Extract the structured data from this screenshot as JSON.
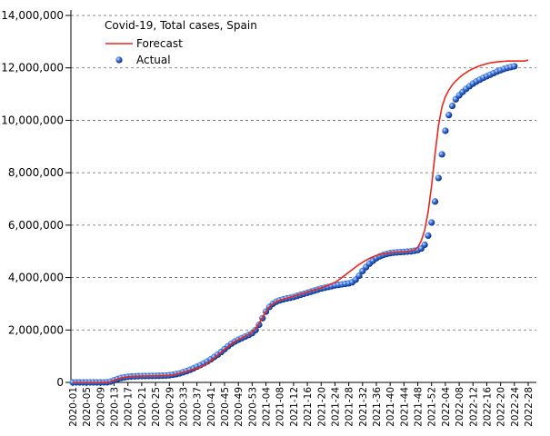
{
  "chart_data": {
    "type": "line",
    "title": "Covid-19, Total cases, Spain",
    "legend": "upper left",
    "grid": true,
    "categories": [
      "2020-01",
      null,
      null,
      null,
      "2020-05",
      null,
      null,
      null,
      "2020-09",
      null,
      null,
      null,
      "2020-13",
      null,
      null,
      null,
      "2020-17",
      null,
      null,
      null,
      "2020-21",
      null,
      null,
      null,
      "2020-25",
      null,
      null,
      null,
      "2020-29",
      null,
      null,
      null,
      "2020-33",
      null,
      null,
      null,
      "2020-37",
      null,
      null,
      null,
      "2020-41",
      null,
      null,
      null,
      "2020-45",
      null,
      null,
      null,
      "2020-49",
      null,
      null,
      null,
      "2020-53",
      null,
      null,
      null,
      "2021-04",
      null,
      null,
      null,
      "2021-08",
      null,
      null,
      null,
      "2021-12",
      null,
      null,
      null,
      "2021-16",
      null,
      null,
      null,
      "2021-20",
      null,
      null,
      null,
      "2021-24",
      null,
      null,
      null,
      "2021-28",
      null,
      null,
      null,
      "2021-32",
      null,
      null,
      null,
      "2021-36",
      null,
      null,
      null,
      "2021-40",
      null,
      null,
      null,
      "2021-44",
      null,
      null,
      null,
      "2021-48",
      null,
      null,
      null,
      "2021-52",
      null,
      null,
      null,
      "2022-04",
      null,
      null,
      null,
      "2022-08",
      null,
      null,
      null,
      "2022-12",
      null,
      null,
      null,
      "2022-16",
      null,
      null,
      null,
      "2022-20",
      null,
      null,
      null,
      "2022-24",
      null,
      null,
      null,
      "2022-28"
    ],
    "ylim": [
      0,
      14000000
    ],
    "yticks": [
      0,
      {
        "value": 2000000,
        "label": "2,000,000"
      },
      {
        "value": 4000000,
        "label": "4,000,000"
      },
      {
        "value": 6000000,
        "label": "6,000,000"
      },
      {
        "value": 8000000,
        "label": "8,000,000"
      },
      {
        "value": 10000000,
        "label": "10,000,000"
      },
      {
        "value": 12000000,
        "label": "12,000,000"
      },
      {
        "value": 14000000,
        "label": "14,000,000"
      }
    ],
    "series": [
      {
        "name": "Forecast",
        "color": "#e8281c",
        "style": "line",
        "values": [
          0,
          0,
          0,
          0,
          0,
          0,
          0,
          0,
          500,
          2000,
          5000,
          30000,
          85000,
          130000,
          170000,
          195000,
          215000,
          225000,
          232000,
          238000,
          240000,
          243000,
          245000,
          247000,
          249000,
          252000,
          256000,
          262000,
          272000,
          290000,
          315000,
          345000,
          385000,
          420000,
          460000,
          500000,
          540000,
          580000,
          640000,
          720000,
          820000,
          930000,
          1040000,
          1150000,
          1260000,
          1370000,
          1470000,
          1560000,
          1630000,
          1700000,
          1770000,
          1840000,
          1920000,
          2050000,
          2250000,
          2480000,
          2700000,
          2880000,
          3000000,
          3080000,
          3130000,
          3170000,
          3210000,
          3250000,
          3290000,
          3330000,
          3370000,
          3410000,
          3450000,
          3490000,
          3530000,
          3570000,
          3610000,
          3650000,
          3700000,
          3760000,
          3820000,
          3900000,
          4000000,
          4100000,
          4200000,
          4300000,
          4400000,
          4500000,
          4580000,
          4660000,
          4730000,
          4790000,
          4840000,
          4880000,
          4910000,
          4930000,
          4950000,
          4960000,
          4970000,
          4980000,
          4990000,
          5000000,
          5020000,
          5050000,
          5150000,
          5400000,
          5800000,
          6500000,
          7500000,
          8700000,
          9800000,
          10500000,
          10900000,
          11150000,
          11350000,
          11500000,
          11620000,
          11730000,
          11820000,
          11900000,
          11970000,
          12030000,
          12080000,
          12120000,
          12160000,
          12190000,
          12210000,
          12230000,
          12240000,
          12250000,
          12260000,
          12260000,
          12260000,
          12260000,
          12260000,
          12260000,
          12300000
        ]
      },
      {
        "name": "Actual",
        "color": "#1f5fd0",
        "style": "points",
        "values": [
          0,
          0,
          0,
          0,
          0,
          0,
          0,
          0,
          500,
          2000,
          5000,
          30000,
          85000,
          130000,
          170000,
          195000,
          215000,
          225000,
          232000,
          238000,
          240000,
          243000,
          245000,
          247000,
          249000,
          252000,
          256000,
          262000,
          272000,
          290000,
          315000,
          345000,
          385000,
          430000,
          480000,
          540000,
          600000,
          660000,
          730000,
          800000,
          880000,
          970000,
          1060000,
          1160000,
          1270000,
          1380000,
          1480000,
          1560000,
          1630000,
          1690000,
          1750000,
          1810000,
          1880000,
          2000000,
          2200000,
          2450000,
          2700000,
          2880000,
          3000000,
          3080000,
          3130000,
          3170000,
          3200000,
          3230000,
          3260000,
          3300000,
          3340000,
          3380000,
          3420000,
          3460000,
          3500000,
          3540000,
          3580000,
          3610000,
          3640000,
          3670000,
          3700000,
          3720000,
          3740000,
          3760000,
          3780000,
          3820000,
          3920000,
          4070000,
          4250000,
          4400000,
          4530000,
          4640000,
          4740000,
          4810000,
          4860000,
          4900000,
          4930000,
          4950000,
          4960000,
          4970000,
          4980000,
          4990000,
          5000000,
          5020000,
          5050000,
          5110000,
          5250000,
          5600000,
          6100000,
          6900000,
          7800000,
          8700000,
          9600000,
          10200000,
          10550000,
          10800000,
          10950000,
          11080000,
          11200000,
          11300000,
          11400000,
          11480000,
          11550000,
          11620000,
          11680000,
          11740000,
          11800000,
          11860000,
          11910000,
          11960000,
          12000000,
          12030000,
          12060000,
          null,
          null,
          null,
          null
        ]
      }
    ]
  }
}
